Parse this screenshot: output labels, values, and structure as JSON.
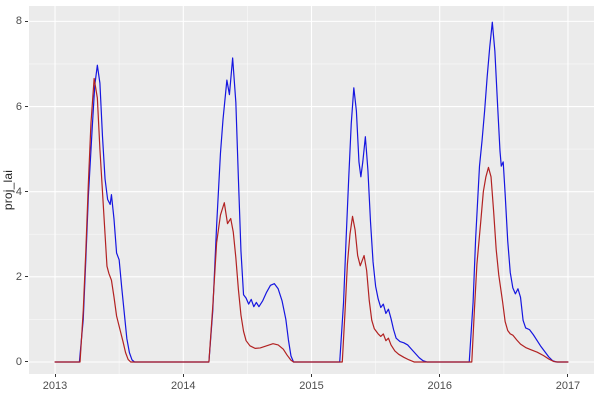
{
  "chart_data": {
    "type": "line",
    "title": "",
    "xlabel": "",
    "ylabel": "proj_lai",
    "xlim": [
      2012.797,
      2017.203
    ],
    "ylim": [
      -0.282,
      8.361
    ],
    "grid": true,
    "legend": "none",
    "x_ticks": {
      "values": [
        2013,
        2014,
        2015,
        2016,
        2017
      ],
      "labels": [
        "2013",
        "2014",
        "2015",
        "2016",
        "2017"
      ],
      "minor": [
        2013.5,
        2014.5,
        2015.5,
        2016.5
      ]
    },
    "y_ticks": {
      "values": [
        0,
        2,
        4,
        6,
        8
      ],
      "labels": [
        "0",
        "2",
        "4",
        "6",
        "8"
      ],
      "minor": [
        1,
        3,
        5,
        7
      ]
    },
    "colors": {
      "panel_background": "#EBEBEB",
      "figure_background": "#FFFFFF",
      "grid_major": "#FFFFFF",
      "grid_minor": "rgba(255,255,255,0.55)",
      "tick_mark": "#333333",
      "tick_label": "#4D4D4D",
      "axis_title": "#262626",
      "series_blue": "#1616E0",
      "series_red": "#B22222"
    },
    "series": [
      {
        "name": "blue-line",
        "color": "#1616E0",
        "points": [
          [
            2013.0,
            0
          ],
          [
            2013.19,
            0
          ],
          [
            2013.22,
            1.0
          ],
          [
            2013.24,
            2.4
          ],
          [
            2013.26,
            3.9
          ],
          [
            2013.29,
            5.5
          ],
          [
            2013.31,
            6.5
          ],
          [
            2013.33,
            6.97
          ],
          [
            2013.35,
            6.55
          ],
          [
            2013.37,
            5.3
          ],
          [
            2013.39,
            4.3
          ],
          [
            2013.41,
            3.82
          ],
          [
            2013.43,
            3.7
          ],
          [
            2013.44,
            3.93
          ],
          [
            2013.46,
            3.35
          ],
          [
            2013.48,
            2.56
          ],
          [
            2013.5,
            2.4
          ],
          [
            2013.52,
            1.75
          ],
          [
            2013.54,
            1.15
          ],
          [
            2013.56,
            0.55
          ],
          [
            2013.58,
            0.22
          ],
          [
            2013.6,
            0.05
          ],
          [
            2013.62,
            0
          ],
          [
            2014.2,
            0
          ],
          [
            2014.23,
            1.2
          ],
          [
            2014.26,
            3.2
          ],
          [
            2014.29,
            4.9
          ],
          [
            2014.31,
            5.7
          ],
          [
            2014.34,
            6.62
          ],
          [
            2014.36,
            6.28
          ],
          [
            2014.385,
            7.14
          ],
          [
            2014.41,
            6.1
          ],
          [
            2014.43,
            4.3
          ],
          [
            2014.45,
            2.6
          ],
          [
            2014.47,
            1.58
          ],
          [
            2014.49,
            1.5
          ],
          [
            2014.51,
            1.36
          ],
          [
            2014.53,
            1.47
          ],
          [
            2014.55,
            1.3
          ],
          [
            2014.57,
            1.4
          ],
          [
            2014.59,
            1.3
          ],
          [
            2014.62,
            1.44
          ],
          [
            2014.65,
            1.64
          ],
          [
            2014.68,
            1.8
          ],
          [
            2014.71,
            1.84
          ],
          [
            2014.74,
            1.72
          ],
          [
            2014.77,
            1.44
          ],
          [
            2014.8,
            1.0
          ],
          [
            2014.82,
            0.52
          ],
          [
            2014.84,
            0.14
          ],
          [
            2014.86,
            0
          ],
          [
            2015.22,
            0
          ],
          [
            2015.25,
            1.4
          ],
          [
            2015.27,
            2.9
          ],
          [
            2015.29,
            4.3
          ],
          [
            2015.31,
            5.6
          ],
          [
            2015.33,
            6.44
          ],
          [
            2015.35,
            5.9
          ],
          [
            2015.37,
            4.7
          ],
          [
            2015.385,
            4.35
          ],
          [
            2015.4,
            4.7
          ],
          [
            2015.42,
            5.29
          ],
          [
            2015.44,
            4.5
          ],
          [
            2015.46,
            3.3
          ],
          [
            2015.48,
            2.35
          ],
          [
            2015.5,
            1.78
          ],
          [
            2015.52,
            1.48
          ],
          [
            2015.54,
            1.28
          ],
          [
            2015.56,
            1.36
          ],
          [
            2015.58,
            1.14
          ],
          [
            2015.6,
            1.24
          ],
          [
            2015.62,
            1.02
          ],
          [
            2015.64,
            0.76
          ],
          [
            2015.66,
            0.56
          ],
          [
            2015.69,
            0.48
          ],
          [
            2015.72,
            0.45
          ],
          [
            2015.75,
            0.4
          ],
          [
            2015.78,
            0.3
          ],
          [
            2015.81,
            0.2
          ],
          [
            2015.84,
            0.1
          ],
          [
            2015.87,
            0.03
          ],
          [
            2015.9,
            0
          ],
          [
            2016.23,
            0
          ],
          [
            2016.26,
            1.4
          ],
          [
            2016.28,
            2.9
          ],
          [
            2016.31,
            4.6
          ],
          [
            2016.33,
            5.2
          ],
          [
            2016.35,
            5.9
          ],
          [
            2016.37,
            6.7
          ],
          [
            2016.39,
            7.4
          ],
          [
            2016.41,
            7.98
          ],
          [
            2016.43,
            7.3
          ],
          [
            2016.45,
            6.1
          ],
          [
            2016.47,
            4.95
          ],
          [
            2016.48,
            4.6
          ],
          [
            2016.495,
            4.7
          ],
          [
            2016.51,
            3.95
          ],
          [
            2016.53,
            2.85
          ],
          [
            2016.55,
            2.1
          ],
          [
            2016.57,
            1.74
          ],
          [
            2016.59,
            1.6
          ],
          [
            2016.61,
            1.72
          ],
          [
            2016.63,
            1.52
          ],
          [
            2016.65,
            0.98
          ],
          [
            2016.67,
            0.8
          ],
          [
            2016.7,
            0.76
          ],
          [
            2016.73,
            0.64
          ],
          [
            2016.76,
            0.5
          ],
          [
            2016.79,
            0.36
          ],
          [
            2016.82,
            0.24
          ],
          [
            2016.85,
            0.12
          ],
          [
            2016.88,
            0.03
          ],
          [
            2016.91,
            0
          ],
          [
            2017.0,
            0
          ]
        ]
      },
      {
        "name": "red-line",
        "color": "#B22222",
        "points": [
          [
            2013.0,
            0
          ],
          [
            2013.195,
            0
          ],
          [
            2013.22,
            1.2
          ],
          [
            2013.24,
            2.6
          ],
          [
            2013.26,
            4.2
          ],
          [
            2013.28,
            5.6
          ],
          [
            2013.305,
            6.66
          ],
          [
            2013.33,
            6.2
          ],
          [
            2013.35,
            5.0
          ],
          [
            2013.37,
            4.0
          ],
          [
            2013.39,
            3.0
          ],
          [
            2013.405,
            2.25
          ],
          [
            2013.42,
            2.08
          ],
          [
            2013.44,
            1.92
          ],
          [
            2013.46,
            1.52
          ],
          [
            2013.48,
            1.08
          ],
          [
            2013.51,
            0.72
          ],
          [
            2013.53,
            0.48
          ],
          [
            2013.55,
            0.22
          ],
          [
            2013.57,
            0.06
          ],
          [
            2013.59,
            0
          ],
          [
            2014.2,
            0
          ],
          [
            2014.23,
            1.3
          ],
          [
            2014.26,
            2.8
          ],
          [
            2014.29,
            3.45
          ],
          [
            2014.32,
            3.74
          ],
          [
            2014.345,
            3.25
          ],
          [
            2014.37,
            3.37
          ],
          [
            2014.39,
            3.05
          ],
          [
            2014.41,
            2.45
          ],
          [
            2014.43,
            1.7
          ],
          [
            2014.45,
            1.1
          ],
          [
            2014.47,
            0.72
          ],
          [
            2014.49,
            0.5
          ],
          [
            2014.52,
            0.38
          ],
          [
            2014.56,
            0.32
          ],
          [
            2014.6,
            0.33
          ],
          [
            2014.65,
            0.38
          ],
          [
            2014.7,
            0.43
          ],
          [
            2014.74,
            0.4
          ],
          [
            2014.78,
            0.3
          ],
          [
            2014.81,
            0.16
          ],
          [
            2014.84,
            0.04
          ],
          [
            2014.86,
            0
          ],
          [
            2015.24,
            0
          ],
          [
            2015.26,
            1.1
          ],
          [
            2015.28,
            2.3
          ],
          [
            2015.3,
            3.0
          ],
          [
            2015.32,
            3.42
          ],
          [
            2015.34,
            3.1
          ],
          [
            2015.36,
            2.5
          ],
          [
            2015.38,
            2.26
          ],
          [
            2015.41,
            2.5
          ],
          [
            2015.43,
            2.15
          ],
          [
            2015.45,
            1.45
          ],
          [
            2015.47,
            0.98
          ],
          [
            2015.49,
            0.78
          ],
          [
            2015.52,
            0.66
          ],
          [
            2015.54,
            0.6
          ],
          [
            2015.56,
            0.66
          ],
          [
            2015.58,
            0.5
          ],
          [
            2015.6,
            0.56
          ],
          [
            2015.62,
            0.4
          ],
          [
            2015.65,
            0.26
          ],
          [
            2015.68,
            0.18
          ],
          [
            2015.72,
            0.11
          ],
          [
            2015.76,
            0.05
          ],
          [
            2015.8,
            0
          ],
          [
            2016.25,
            0
          ],
          [
            2016.27,
            1.2
          ],
          [
            2016.29,
            2.3
          ],
          [
            2016.32,
            3.3
          ],
          [
            2016.34,
            4.0
          ],
          [
            2016.36,
            4.35
          ],
          [
            2016.38,
            4.57
          ],
          [
            2016.4,
            4.35
          ],
          [
            2016.42,
            3.55
          ],
          [
            2016.44,
            2.65
          ],
          [
            2016.46,
            2.05
          ],
          [
            2016.49,
            1.42
          ],
          [
            2016.51,
            0.95
          ],
          [
            2016.53,
            0.74
          ],
          [
            2016.55,
            0.66
          ],
          [
            2016.57,
            0.63
          ],
          [
            2016.6,
            0.52
          ],
          [
            2016.63,
            0.42
          ],
          [
            2016.67,
            0.34
          ],
          [
            2016.71,
            0.29
          ],
          [
            2016.76,
            0.23
          ],
          [
            2016.81,
            0.15
          ],
          [
            2016.85,
            0.07
          ],
          [
            2016.89,
            0.01
          ],
          [
            2016.92,
            0
          ],
          [
            2017.0,
            0
          ]
        ]
      }
    ]
  }
}
